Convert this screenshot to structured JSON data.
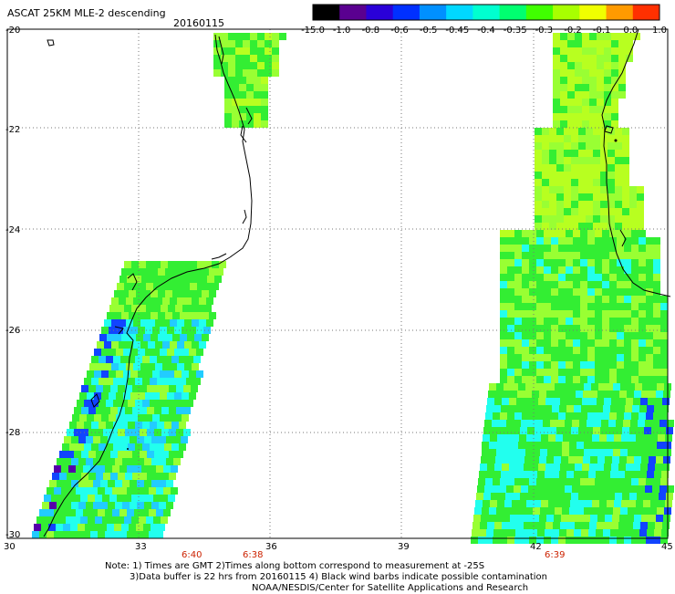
{
  "title": "ASCAT 25KM MLE-2 descending",
  "date": "20160115",
  "colorbar": {
    "tick_labels": [
      "-15.0",
      "-1.0",
      "-0.8",
      "-0.6",
      "-0.5",
      "-0.45",
      "-0.4",
      "-0.35",
      "-0.3",
      "-0.2",
      "-0.1",
      "0.0",
      "1.0"
    ],
    "colors": [
      "#000000",
      "#5a0090",
      "#2a00d8",
      "#0030ff",
      "#0090ff",
      "#00d8ff",
      "#00ffd0",
      "#00ff70",
      "#40ff00",
      "#a8ff00",
      "#f0ff00",
      "#ff9a00",
      "#ff3000"
    ]
  },
  "lat_labels": [
    "-20",
    "-22",
    "-24",
    "-26",
    "-28",
    "-30"
  ],
  "lon_labels": [
    "30",
    "33",
    "36",
    "39",
    "42",
    "45"
  ],
  "time_labels": [
    {
      "id": "t1",
      "text": "6:40"
    },
    {
      "id": "t2",
      "text": "6:38"
    },
    {
      "id": "t3",
      "text": "6:39"
    }
  ],
  "notes": [
    "Note: 1) Times are GMT 2)Times along bottom correspond to measurement at -25S",
    "3)Data buffer is 22 hrs from 20160115 4) Black wind barbs indicate possible contamination",
    "NOAA/NESDIS/Center for Satellite Applications and Research"
  ],
  "map_colors": {
    "green": "#33ee33",
    "lime": "#99ff33",
    "yellowgreen": "#b8ff20",
    "cyan": "#22ffee",
    "lightblue": "#22ccff",
    "blue": "#1144ff",
    "darkblue": "#2222cc",
    "purple": "#5500aa",
    "coast": "#000000",
    "grid": "#777777"
  }
}
